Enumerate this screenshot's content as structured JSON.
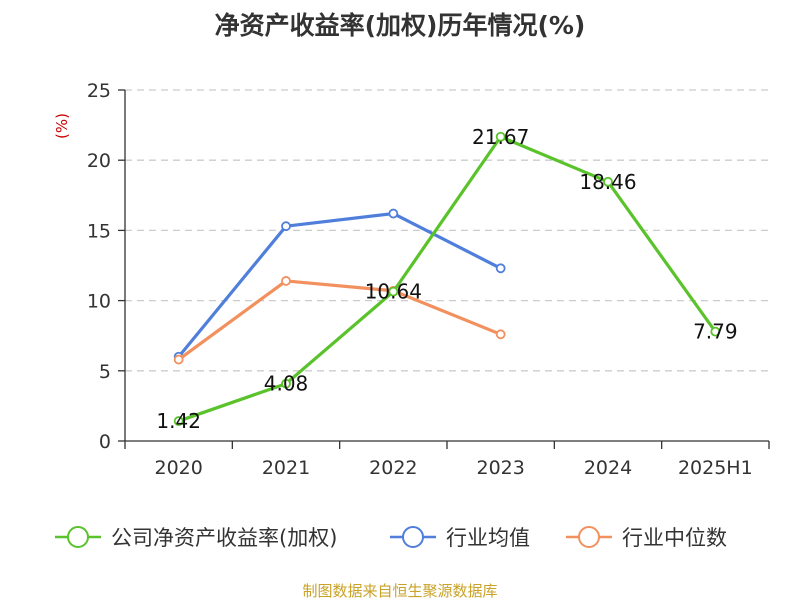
{
  "title": "净资产收益率(加权)历年情况(%)",
  "source": "制图数据来自恒生聚源数据库",
  "chart_data": {
    "type": "line",
    "title": "净资产收益率(加权)历年情况(%)",
    "ylabel": "(%)",
    "xlabel": "",
    "categories": [
      "2020",
      "2021",
      "2022",
      "2023",
      "2024",
      "2025H1"
    ],
    "ylim": [
      0,
      25
    ],
    "yticks": [
      0,
      5,
      10,
      15,
      20,
      25
    ],
    "grid": true,
    "grid_style": "dashed horizontal",
    "legend_position": "bottom",
    "series": [
      {
        "name": "公司净资产收益率(加权)",
        "color": "#5ac22b",
        "values": [
          1.42,
          4.08,
          10.64,
          21.67,
          18.46,
          7.79
        ],
        "labels": [
          "1.42",
          "4.08",
          "10.64",
          "21.67",
          "18.46",
          "7.79"
        ]
      },
      {
        "name": "行业均值",
        "color": "#4f7fdb",
        "values": [
          6.0,
          15.3,
          16.2,
          12.3,
          null,
          null
        ]
      },
      {
        "name": "行业中位数",
        "color": "#f2905e",
        "values": [
          5.8,
          11.4,
          10.7,
          7.6,
          null,
          null
        ]
      }
    ]
  }
}
